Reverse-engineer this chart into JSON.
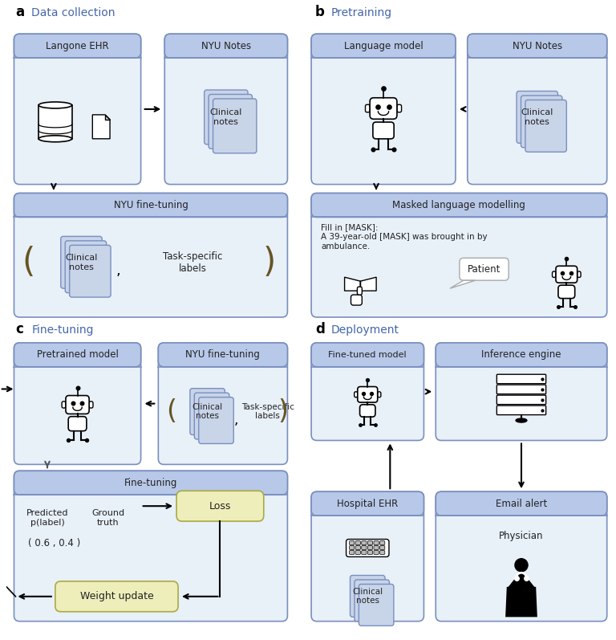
{
  "fig_width": 7.68,
  "fig_height": 7.97,
  "bg_color": "#ffffff",
  "box_fill_lighter": "#e8f0f8",
  "box_border": "#7a8fc0",
  "header_fill": "#b8c8e8",
  "notes_fill": "#c8d4e8",
  "loss_fill": "#eeeebb",
  "text_color": "#222222",
  "title_a": "Data collection",
  "title_b": "Pretraining",
  "title_c": "Fine-tuning",
  "title_d": "Deployment",
  "label_a": "a",
  "label_b": "b",
  "label_c": "c",
  "label_d": "d",
  "section_title_color": "#4466aa",
  "arrow_color": "#111111"
}
